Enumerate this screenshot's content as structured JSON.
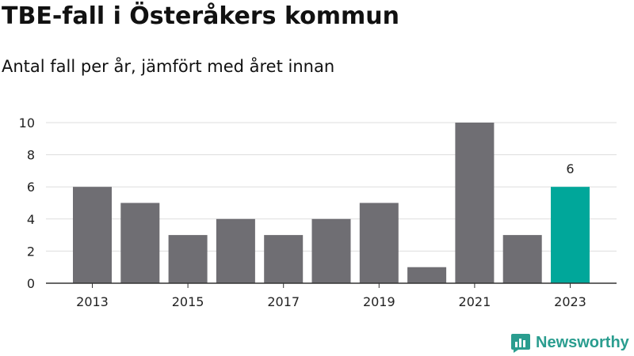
{
  "header": {
    "title": "TBE-fall i Österåkers kommun",
    "subtitle": "Antal fall per år, jämfört med året innan"
  },
  "brand": {
    "name": "Newsworthy"
  },
  "colors": {
    "bar": "#6f6e73",
    "highlight": "#00a79a",
    "grid": "#dddddd",
    "axis": "#333333",
    "brand": "#2a9d8f"
  },
  "chart_data": {
    "type": "bar",
    "title": "TBE-fall i Österåkers kommun",
    "subtitle": "Antal fall per år, jämfört med året innan",
    "categories": [
      "2013",
      "2014",
      "2015",
      "2016",
      "2017",
      "2018",
      "2019",
      "2020",
      "2021",
      "2022",
      "2023"
    ],
    "values": [
      6,
      5,
      3,
      4,
      3,
      4,
      5,
      1,
      10,
      3,
      6
    ],
    "highlight_index": 10,
    "data_labels": [
      {
        "index": 10,
        "text": "6"
      }
    ],
    "x_tick_labels": [
      "2013",
      "2015",
      "2017",
      "2019",
      "2021",
      "2023"
    ],
    "y_ticks": [
      0,
      2,
      4,
      6,
      8,
      10
    ],
    "ylim": [
      0,
      10
    ],
    "xlabel": "",
    "ylabel": "",
    "grid": true,
    "legend": false
  }
}
